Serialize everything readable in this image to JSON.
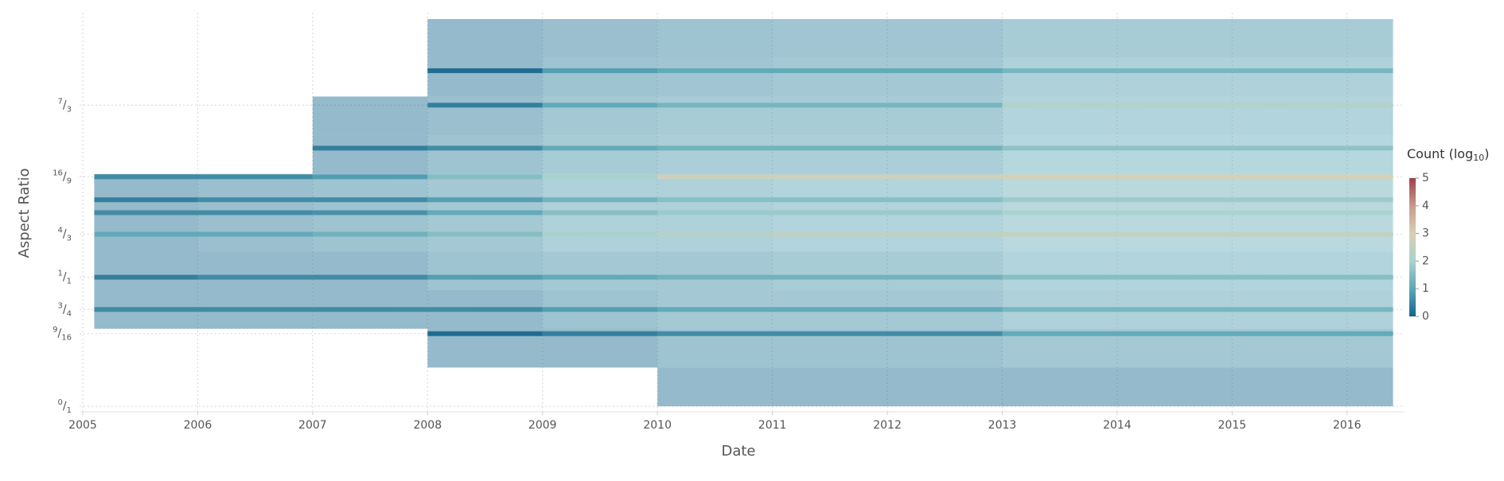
{
  "chart_data": {
    "type": "heatmap",
    "xlabel": "Date",
    "ylabel": "Aspect Ratio",
    "xlim": [
      2005,
      2016.5
    ],
    "xticks": [
      2005,
      2006,
      2007,
      2008,
      2009,
      2010,
      2011,
      2012,
      2013,
      2014,
      2015,
      2016
    ],
    "ylim": [
      0,
      3
    ],
    "yticks": [
      {
        "value": 0,
        "label": "0/1"
      },
      {
        "value": 0.5625,
        "label": "9/16"
      },
      {
        "value": 0.75,
        "label": "3/4"
      },
      {
        "value": 1,
        "label": "1/1"
      },
      {
        "value": 1.333,
        "label": "4/3"
      },
      {
        "value": 1.778,
        "label": "16/9"
      },
      {
        "value": 2.333,
        "label": "7/3"
      }
    ],
    "grid": true,
    "xbins": [
      2005.1,
      2006,
      2007,
      2008,
      2009,
      2010,
      2011,
      2012,
      2013,
      2014,
      2015,
      2016,
      2016.4
    ],
    "colorbar": {
      "title": "Count (log10)",
      "zlim": [
        0,
        5
      ],
      "ticks": [
        0,
        1,
        2,
        3,
        4,
        5
      ],
      "colors": [
        "#13658c",
        "#5ba7b6",
        "#a9d2cc",
        "#d8cfb4",
        "#c7998a",
        "#9f3f4d"
      ]
    },
    "bands": [
      {
        "y": 0.15,
        "values": [
          null,
          null,
          null,
          null,
          null,
          0,
          0,
          0,
          0,
          0,
          0,
          0
        ]
      },
      {
        "y": 0.45,
        "values": [
          null,
          null,
          null,
          0,
          0,
          0.3,
          0.3,
          0.3,
          0.5,
          0.5,
          0.5,
          0.5
        ]
      },
      {
        "y": 0.75,
        "values": [
          0,
          0,
          0,
          0,
          0.3,
          0.5,
          0.5,
          0.5,
          0.8,
          0.8,
          0.8,
          0.8
        ]
      },
      {
        "y": 1.05,
        "values": [
          0,
          0,
          0,
          0.3,
          0.5,
          0.5,
          0.6,
          0.6,
          0.9,
          0.9,
          0.9,
          0.9
        ]
      },
      {
        "y": 1.35,
        "values": [
          0,
          0.2,
          0.3,
          0.5,
          0.8,
          0.8,
          0.9,
          0.9,
          1.1,
          1.1,
          1.1,
          1.1
        ]
      },
      {
        "y": 1.65,
        "values": [
          0,
          0.2,
          0.3,
          0.5,
          0.8,
          0.8,
          0.9,
          0.9,
          1.1,
          1.1,
          1.1,
          1.1
        ]
      },
      {
        "y": 1.95,
        "values": [
          null,
          null,
          0,
          0.3,
          0.6,
          0.7,
          0.7,
          0.7,
          1,
          1,
          1,
          1
        ]
      },
      {
        "y": 2.25,
        "values": [
          null,
          null,
          0,
          0.2,
          0.5,
          0.6,
          0.6,
          0.6,
          0.9,
          0.9,
          0.9,
          0.9
        ]
      },
      {
        "y": 2.55,
        "values": [
          null,
          null,
          null,
          0,
          0.3,
          0.4,
          0.5,
          0.5,
          0.8,
          0.8,
          0.8,
          0.8
        ]
      },
      {
        "y": 2.85,
        "values": [
          null,
          null,
          null,
          0,
          0.2,
          0.3,
          0.4,
          0.4,
          0.6,
          0.6,
          0.6,
          0.6
        ]
      }
    ],
    "lines": [
      {
        "y": 0.5625,
        "values": [
          null,
          null,
          null,
          0,
          0.3,
          0.5,
          0.5,
          0.5,
          1,
          1,
          1,
          1
        ]
      },
      {
        "y": 0.75,
        "values": [
          0.5,
          0.5,
          0.5,
          0.5,
          0.8,
          1,
          1,
          1,
          1.3,
          1.3,
          1.3,
          1.3
        ]
      },
      {
        "y": 1,
        "values": [
          0.3,
          0.5,
          0.5,
          0.8,
          1,
          1.2,
          1.2,
          1.2,
          1.5,
          1.5,
          1.5,
          1.5
        ]
      },
      {
        "y": 1.333,
        "values": [
          1,
          1,
          1.2,
          1.5,
          2,
          2.3,
          2.5,
          2.5,
          2.6,
          2.6,
          2.6,
          2.6
        ]
      },
      {
        "y": 1.5,
        "values": [
          0.5,
          0.5,
          0.6,
          1,
          1.5,
          1.8,
          1.8,
          1.8,
          2,
          2,
          2,
          2
        ]
      },
      {
        "y": 1.6,
        "values": [
          0.3,
          0.5,
          0.5,
          0.8,
          1.2,
          1.5,
          1.5,
          1.5,
          1.8,
          1.8,
          1.8,
          1.8
        ]
      },
      {
        "y": 1.778,
        "values": [
          0.5,
          0.5,
          0.8,
          1.5,
          2,
          2.8,
          2.8,
          2.8,
          3,
          3,
          3,
          3
        ]
      },
      {
        "y": 2,
        "values": [
          null,
          null,
          0.3,
          0.5,
          1,
          1.2,
          1.2,
          1.2,
          1.6,
          1.6,
          1.6,
          1.6
        ]
      },
      {
        "y": 2.333,
        "values": [
          null,
          null,
          null,
          0.3,
          1,
          1.3,
          1.3,
          1.3,
          2.2,
          2.2,
          2.2,
          2.2
        ]
      },
      {
        "y": 2.6,
        "values": [
          null,
          null,
          null,
          0,
          0.8,
          1,
          1,
          1,
          1.3,
          1.3,
          1.3,
          1.3
        ]
      }
    ]
  }
}
